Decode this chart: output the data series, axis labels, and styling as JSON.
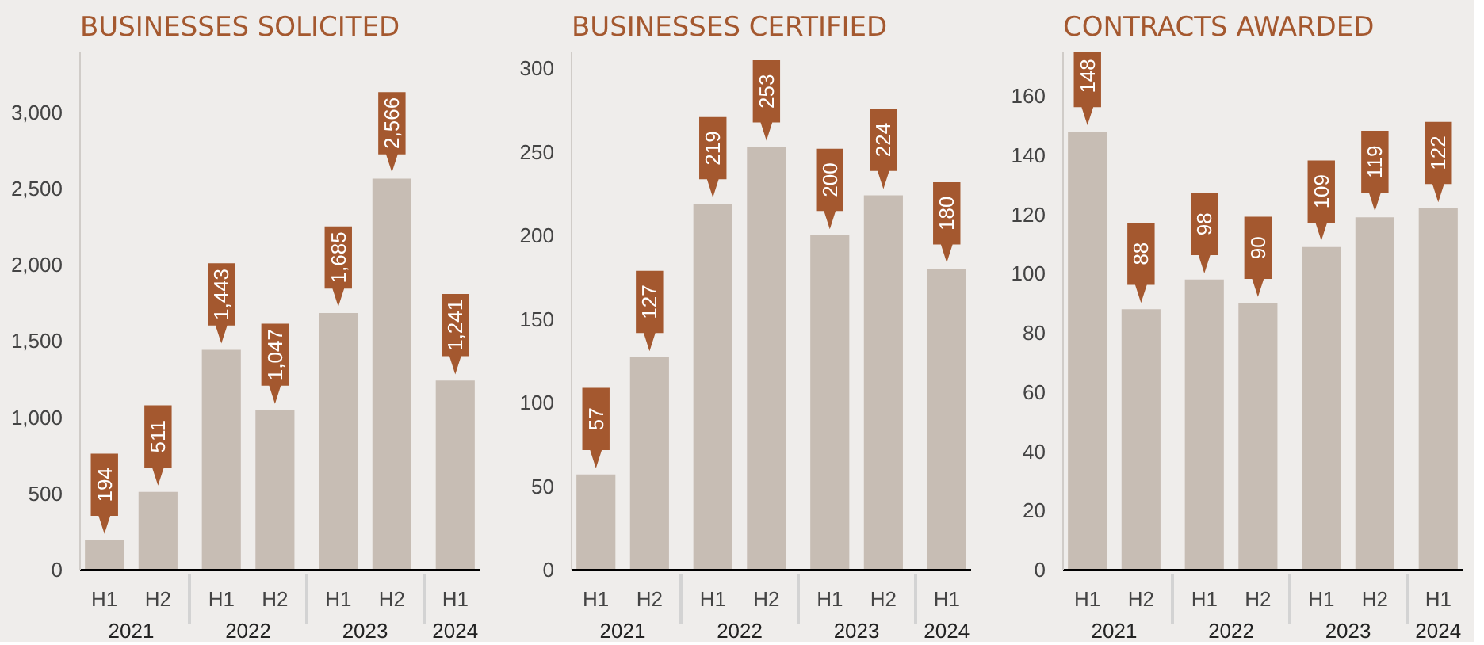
{
  "chart_data": [
    {
      "type": "bar",
      "title": "BUSINESSES SOLICITED",
      "categories": [
        "H1",
        "H2",
        "H1",
        "H2",
        "H1",
        "H2",
        "H1"
      ],
      "annotations": [
        "2021",
        "2022",
        "2023",
        "2024"
      ],
      "values": [
        194,
        511,
        1443,
        1047,
        1685,
        2566,
        1241
      ],
      "value_labels": [
        "194",
        "511",
        "1,443",
        "1,047",
        "1,685",
        "2,566",
        "1,241"
      ],
      "color": "#c7bdb4",
      "ylim": [
        0,
        3400
      ],
      "yticks": [
        0,
        500,
        {
          "value": 1000,
          "label": "1,000"
        },
        {
          "value": 1500,
          "label": "1,500"
        },
        {
          "value": 2000,
          "label": "2,000"
        },
        {
          "value": 2500,
          "label": "2,500"
        },
        {
          "value": 3000,
          "label": "3,000"
        }
      ],
      "grid": false
    },
    {
      "type": "bar",
      "title": "BUSINESSES CERTIFIED",
      "categories": [
        "H1",
        "H2",
        "H1",
        "H2",
        "H1",
        "H2",
        "H1"
      ],
      "annotations": [
        "2021",
        "2022",
        "2023",
        "2024"
      ],
      "values": [
        57,
        127,
        219,
        253,
        200,
        224,
        180
      ],
      "value_labels": [
        "57",
        "127",
        "219",
        "253",
        "200",
        "224",
        "180"
      ],
      "color": "#c7bdb4",
      "ylim": [
        0,
        310
      ],
      "yticks": [
        0,
        50,
        100,
        150,
        200,
        250,
        300
      ],
      "grid": false
    },
    {
      "type": "bar",
      "title": "CONTRACTS AWARDED",
      "categories": [
        "H1",
        "H2",
        "H1",
        "H2",
        "H1",
        "H2",
        "H1"
      ],
      "annotations": [
        "2021",
        "2022",
        "2023",
        "2024"
      ],
      "values": [
        148,
        88,
        98,
        90,
        109,
        119,
        122
      ],
      "value_labels": [
        "148",
        "88",
        "98",
        "90",
        "109",
        "119",
        "122"
      ],
      "color": "#c7bdb4",
      "ylim": [
        0,
        175
      ],
      "yticks": [
        0,
        20,
        40,
        60,
        80,
        100,
        120,
        140,
        160
      ],
      "grid": false
    }
  ]
}
